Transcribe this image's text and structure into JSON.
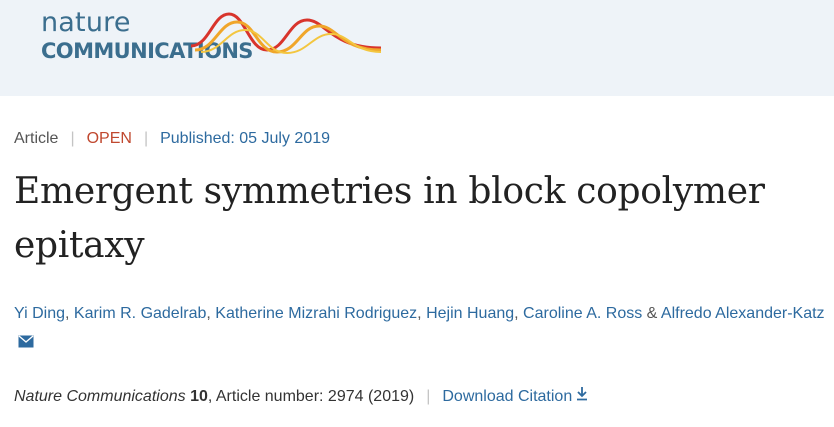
{
  "logo": {
    "top": "nature",
    "bottom": "COMMUNICATIONS"
  },
  "article_meta": {
    "type": "Article",
    "access": "OPEN",
    "published": "Published: 05 July 2019"
  },
  "title_lines": [
    "Emergent symmetries in block copolymer",
    "epitaxy"
  ],
  "authors": [
    "Yi Ding",
    "Karim R. Gadelrab",
    "Katherine Mizrahi Rodriguez",
    "Hejin Huang",
    "Caroline A. Ross",
    "Alfredo Alexander-Katz"
  ],
  "author_separator": ",",
  "author_conjunction": "&",
  "citation": {
    "journal": "Nature Communications",
    "volume": "10",
    "rest": ", Article number: 2974 (2019)",
    "download_label": "Download Citation"
  },
  "icons": {
    "mail": "mail-icon",
    "download": "download-icon"
  },
  "colors": {
    "link": "#2d6a9f",
    "open": "#c0482f",
    "logo": "#3b6e8e",
    "header_bg": "#eef3f8"
  }
}
